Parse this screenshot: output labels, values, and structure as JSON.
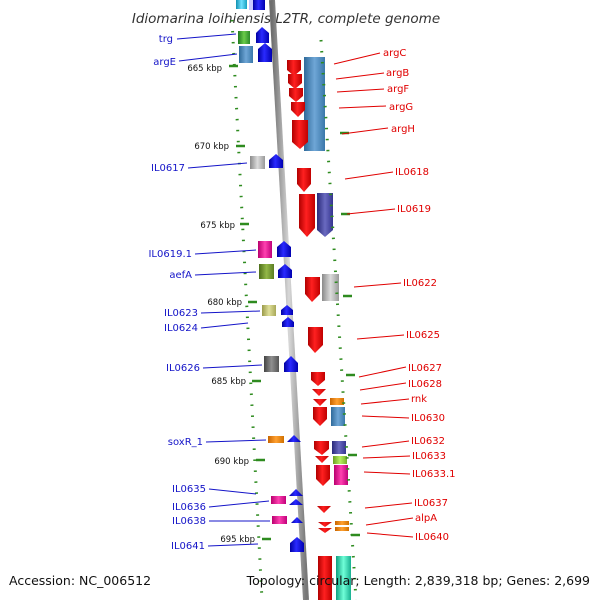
{
  "title": "Idiomarina loihiensis L2TR, complete genome",
  "footer": {
    "accession": "Accession: NC_006512",
    "summary": "Topology: circular; Length: 2,839,318 bp; Genes: 2,699"
  },
  "scale_labels": [
    "665 kbp",
    "670 kbp",
    "675 kbp",
    "680 kbp",
    "685 kbp",
    "690 kbp",
    "695 kbp"
  ],
  "left_genes": [
    "trg",
    "argE",
    "IL0617",
    "IL0619.1",
    "aefA",
    "IL0623",
    "IL0624",
    "IL0626",
    "soxR_1",
    "IL0635",
    "IL0636",
    "IL0638",
    "IL0641"
  ],
  "right_genes": [
    "argC",
    "argB",
    "argF",
    "argG",
    "argH",
    "IL0618",
    "IL0619",
    "IL0622",
    "IL0625",
    "IL0627",
    "IL0628",
    "rnk",
    "IL0630",
    "IL0632",
    "IL0633",
    "IL0633.1",
    "IL0637",
    "alpA",
    "IL0640"
  ],
  "colors": {
    "left_label": "#1414c8",
    "right_label": "#e00000",
    "backbone": "#8a8a8a",
    "tick": "#2e8b1f",
    "forward_strand": "#0000ee",
    "reverse_strand": "#ee0000"
  }
}
